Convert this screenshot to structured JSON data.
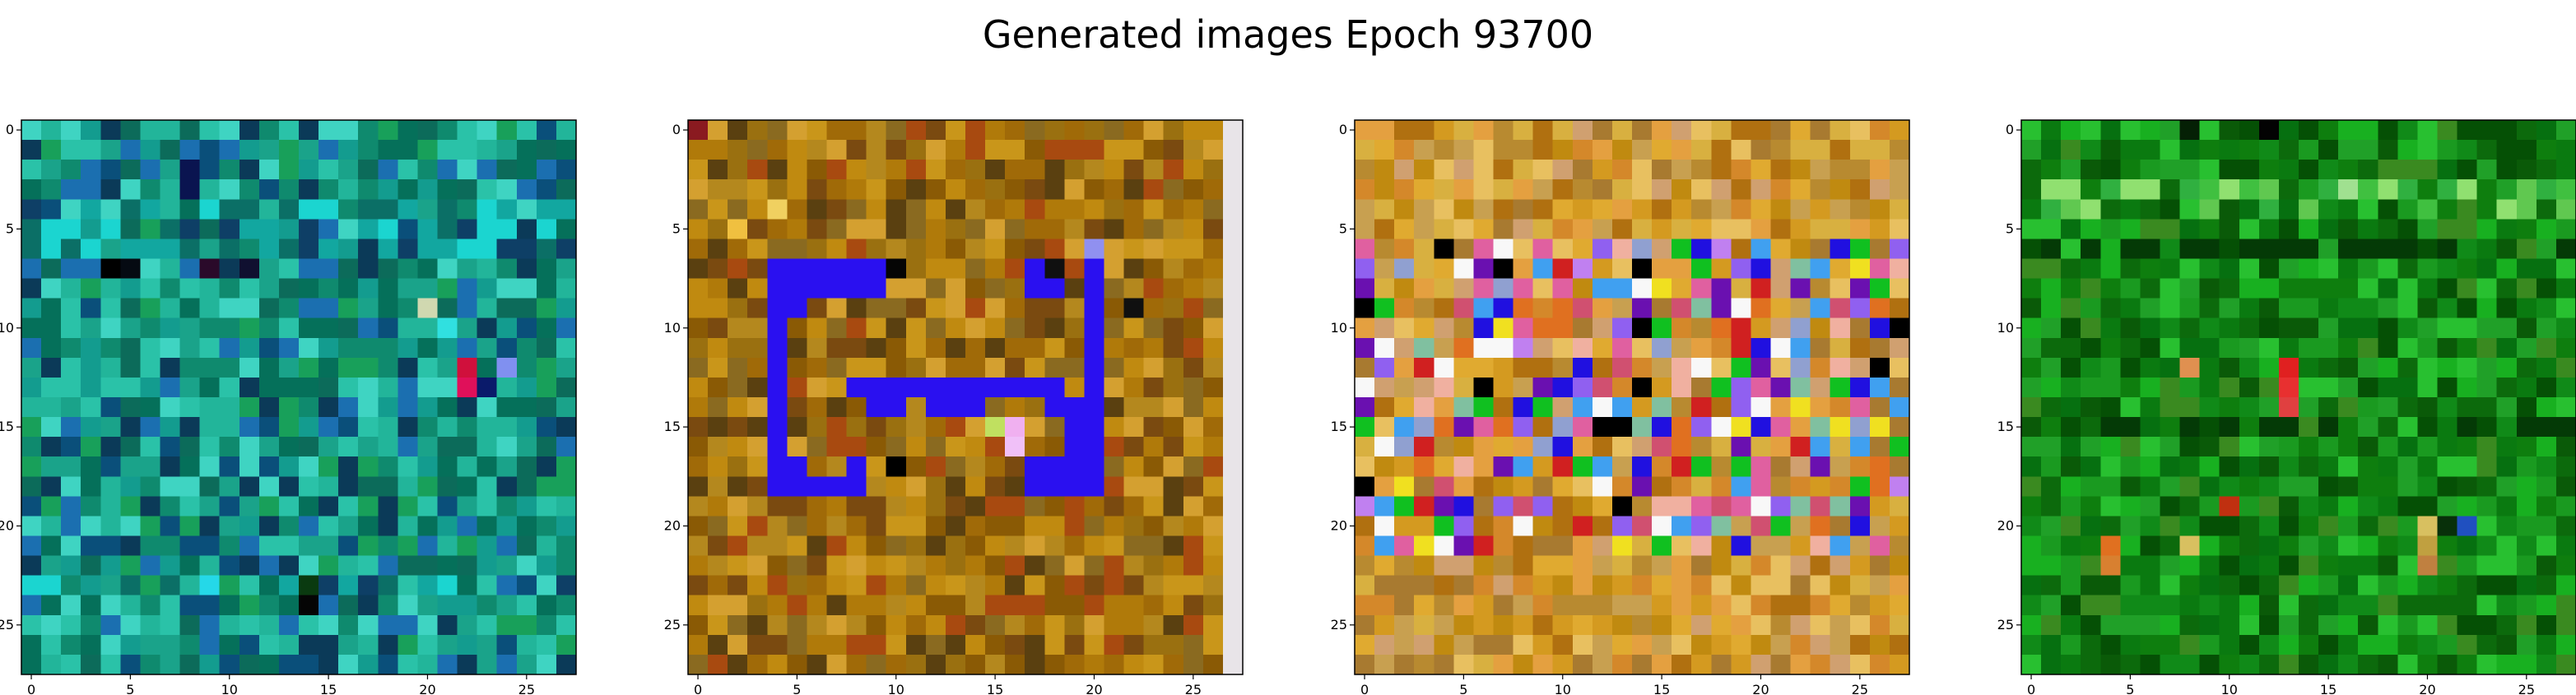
{
  "figure": {
    "title": "Generated images Epoch 93700"
  },
  "chart_data": [
    {
      "type": "heatmap",
      "title": "",
      "xlabel": "",
      "ylabel": "",
      "grid_size": 28,
      "xlim": [
        -0.5,
        27.5
      ],
      "ylim": [
        27.5,
        -0.5
      ],
      "xticks": [
        0,
        5,
        10,
        15,
        20,
        25
      ],
      "yticks": [
        0,
        5,
        10,
        15,
        20,
        25
      ],
      "grid": false,
      "palette": [
        "#0f8a6e",
        "#1aa38a",
        "#22b59a",
        "#0c6b5a",
        "#139c8f",
        "#2ac2a8",
        "#0a4f7a",
        "#1b6fb0",
        "#3fd4c2",
        "#0b3a58",
        "#18a05a",
        "#05705a"
      ],
      "band_palette": [
        "#0b6f66",
        "#12a7a0",
        "#0e3f66",
        "#1bd5d0"
      ],
      "band_rows": [
        4,
        5,
        6,
        23
      ],
      "feature_spots": [
        {
          "row": 7,
          "col": 4,
          "color": "#000000"
        },
        {
          "row": 7,
          "col": 5,
          "color": "#050a12"
        },
        {
          "row": 7,
          "col": 9,
          "color": "#2a0a2a"
        },
        {
          "row": 7,
          "col": 11,
          "color": "#101030"
        },
        {
          "row": 12,
          "col": 22,
          "color": "#d0103c"
        },
        {
          "row": 13,
          "col": 22,
          "color": "#e0105a"
        },
        {
          "row": 12,
          "col": 24,
          "color": "#8090f0"
        },
        {
          "row": 13,
          "col": 23,
          "color": "#0a1a6a"
        },
        {
          "row": 24,
          "col": 14,
          "color": "#050505"
        },
        {
          "row": 23,
          "col": 14,
          "color": "#0a3a10"
        },
        {
          "row": 23,
          "col": 9,
          "color": "#25d8e8"
        },
        {
          "row": 3,
          "col": 8,
          "color": "#0a1450"
        },
        {
          "row": 2,
          "col": 8,
          "color": "#0a1450"
        },
        {
          "row": 9,
          "col": 20,
          "color": "#d0d8b0"
        },
        {
          "row": 10,
          "col": 21,
          "color": "#30e0e0"
        }
      ]
    },
    {
      "type": "heatmap",
      "title": "",
      "xlabel": "",
      "ylabel": "",
      "grid_size": 28,
      "xlim": [
        -0.5,
        27.5
      ],
      "ylim": [
        27.5,
        -0.5
      ],
      "xticks": [
        0,
        5,
        10,
        15,
        20,
        25
      ],
      "yticks": [
        0,
        5,
        10,
        15,
        20,
        25
      ],
      "grid": false,
      "palette": [
        "#b07a0a",
        "#c08a10",
        "#8a5a05",
        "#a06a08",
        "#c9961a",
        "#7a4a10",
        "#9a7010",
        "#b4881e",
        "#5a4010",
        "#d4a030",
        "#a84a10",
        "#8a6a20"
      ],
      "last_col_color": "#e8e4e8",
      "shape_color": "#2a10f0",
      "shape_cells": [
        [
          7,
          4
        ],
        [
          7,
          5
        ],
        [
          7,
          6
        ],
        [
          7,
          7
        ],
        [
          7,
          8
        ],
        [
          7,
          9
        ],
        [
          8,
          4
        ],
        [
          8,
          5
        ],
        [
          8,
          6
        ],
        [
          8,
          7
        ],
        [
          8,
          8
        ],
        [
          8,
          9
        ],
        [
          9,
          4
        ],
        [
          9,
          5
        ],
        [
          10,
          4
        ],
        [
          11,
          4
        ],
        [
          12,
          4
        ],
        [
          13,
          4
        ],
        [
          14,
          4
        ],
        [
          15,
          4
        ],
        [
          16,
          4
        ],
        [
          17,
          4
        ],
        [
          18,
          4
        ],
        [
          9,
          5
        ],
        [
          17,
          5
        ],
        [
          18,
          5
        ],
        [
          18,
          6
        ],
        [
          18,
          7
        ],
        [
          18,
          8
        ],
        [
          17,
          8
        ],
        [
          13,
          8
        ],
        [
          13,
          9
        ],
        [
          13,
          10
        ],
        [
          13,
          11
        ],
        [
          13,
          12
        ],
        [
          13,
          13
        ],
        [
          13,
          14
        ],
        [
          13,
          15
        ],
        [
          13,
          16
        ],
        [
          13,
          17
        ],
        [
          13,
          18
        ],
        [
          14,
          9
        ],
        [
          14,
          10
        ],
        [
          14,
          12
        ],
        [
          14,
          13
        ],
        [
          14,
          14
        ],
        [
          14,
          18
        ],
        [
          7,
          17
        ],
        [
          7,
          18
        ],
        [
          8,
          17
        ],
        [
          8,
          18
        ],
        [
          7,
          20
        ],
        [
          8,
          20
        ],
        [
          9,
          20
        ],
        [
          10,
          20
        ],
        [
          11,
          20
        ],
        [
          12,
          20
        ],
        [
          13,
          20
        ],
        [
          14,
          20
        ],
        [
          15,
          20
        ],
        [
          16,
          20
        ],
        [
          17,
          20
        ],
        [
          18,
          20
        ],
        [
          17,
          17
        ],
        [
          17,
          18
        ],
        [
          17,
          19
        ],
        [
          18,
          17
        ],
        [
          18,
          18
        ],
        [
          18,
          19
        ],
        [
          14,
          19
        ],
        [
          15,
          19
        ],
        [
          16,
          19
        ]
      ],
      "feature_spots": [
        {
          "row": 15,
          "col": 16,
          "color": "#f0b0f0"
        },
        {
          "row": 16,
          "col": 16,
          "color": "#f0c0f8"
        },
        {
          "row": 15,
          "col": 15,
          "color": "#c0e060"
        },
        {
          "row": 6,
          "col": 20,
          "color": "#9090f0"
        },
        {
          "row": 17,
          "col": 10,
          "color": "#000000"
        },
        {
          "row": 7,
          "col": 10,
          "color": "#050505"
        },
        {
          "row": 4,
          "col": 4,
          "color": "#f0d060"
        },
        {
          "row": 5,
          "col": 2,
          "color": "#f0c040"
        },
        {
          "row": 0,
          "col": 0,
          "color": "#8a1a20"
        },
        {
          "row": 7,
          "col": 18,
          "color": "#101010"
        },
        {
          "row": 9,
          "col": 22,
          "color": "#101010"
        }
      ]
    },
    {
      "type": "heatmap",
      "title": "",
      "xlabel": "",
      "ylabel": "",
      "grid_size": 28,
      "xlim": [
        -0.5,
        27.5
      ],
      "ylim": [
        27.5,
        -0.5
      ],
      "xticks": [
        0,
        5,
        10,
        15,
        20,
        25
      ],
      "yticks": [
        0,
        5,
        10,
        15,
        20,
        25
      ],
      "grid": false,
      "palette": [
        "#d49a20",
        "#e0aa30",
        "#c08a10",
        "#d8b040",
        "#b88a30",
        "#e4a040",
        "#c8a050",
        "#d4882a",
        "#b07010",
        "#e8c060",
        "#a87a30",
        "#d0a070"
      ],
      "mid_palette": [
        "#2010e0",
        "#6a10b0",
        "#d02020",
        "#f0b0a0",
        "#d05070",
        "#9060f0",
        "#10c020",
        "#f0e020",
        "#e07020",
        "#90a0d0",
        "#40a0f0",
        "#000000",
        "#e060a0",
        "#f8f8f8",
        "#c080f0",
        "#80c0a0"
      ],
      "mid_rows": [
        6,
        21
      ],
      "mid_cols": [
        0,
        27
      ],
      "mid_density": 0.55
    },
    {
      "type": "heatmap",
      "title": "",
      "xlabel": "",
      "ylabel": "",
      "grid_size": 28,
      "xlim": [
        -0.5,
        27.5
      ],
      "ylim": [
        27.5,
        -0.5
      ],
      "xticks": [
        0,
        5,
        10,
        15,
        20,
        25
      ],
      "yticks": [
        0,
        5,
        10,
        15,
        20,
        25
      ],
      "grid": false,
      "palette": [
        "#0a7a10",
        "#108a18",
        "#067010",
        "#1a9a20",
        "#0c6a0c",
        "#20a028",
        "#0a5a08",
        "#18b020",
        "#3a8a20",
        "#0e7e0e",
        "#28c030",
        "#055005"
      ],
      "band_palette": [
        "#30b040",
        "#60c850",
        "#40c040",
        "#90e070"
      ],
      "band_rows": [
        3,
        4
      ],
      "dark_rows": [
        6,
        15
      ],
      "feature_spots": [
        {
          "row": 12,
          "col": 13,
          "color": "#e02020"
        },
        {
          "row": 13,
          "col": 13,
          "color": "#e83030"
        },
        {
          "row": 14,
          "col": 13,
          "color": "#e04040"
        },
        {
          "row": 12,
          "col": 8,
          "color": "#e09050"
        },
        {
          "row": 19,
          "col": 10,
          "color": "#c03010"
        },
        {
          "row": 21,
          "col": 4,
          "color": "#e07020"
        },
        {
          "row": 22,
          "col": 4,
          "color": "#d88030"
        },
        {
          "row": 21,
          "col": 8,
          "color": "#d8c060"
        },
        {
          "row": 20,
          "col": 20,
          "color": "#d8c060"
        },
        {
          "row": 21,
          "col": 20,
          "color": "#c0a040"
        },
        {
          "row": 22,
          "col": 20,
          "color": "#c08040"
        },
        {
          "row": 20,
          "col": 21,
          "color": "#08300a"
        },
        {
          "row": 20,
          "col": 22,
          "color": "#2050c0"
        },
        {
          "row": 0,
          "col": 12,
          "color": "#030303"
        },
        {
          "row": 0,
          "col": 8,
          "color": "#052005"
        },
        {
          "row": 3,
          "col": 16,
          "color": "#a0e090"
        }
      ]
    }
  ]
}
